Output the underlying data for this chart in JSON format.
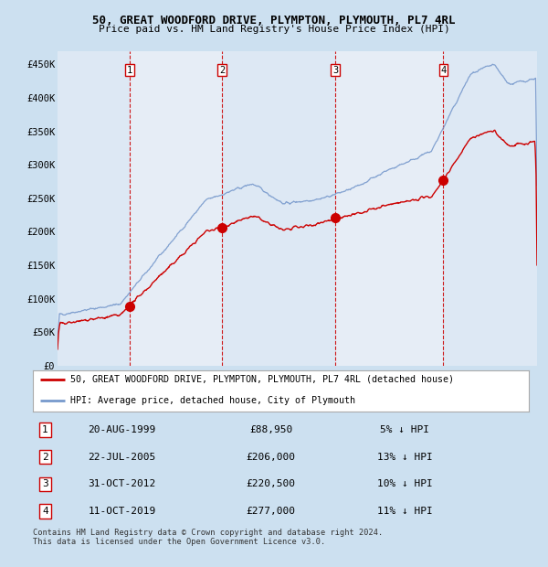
{
  "title": "50, GREAT WOODFORD DRIVE, PLYMPTON, PLYMOUTH, PL7 4RL",
  "subtitle": "Price paid vs. HM Land Registry's House Price Index (HPI)",
  "xlim_start": 1995.0,
  "xlim_end": 2025.8,
  "ylim": [
    0,
    470000
  ],
  "yticks": [
    0,
    50000,
    100000,
    150000,
    200000,
    250000,
    300000,
    350000,
    400000,
    450000
  ],
  "ytick_labels": [
    "£0",
    "£50K",
    "£100K",
    "£150K",
    "£200K",
    "£250K",
    "£300K",
    "£350K",
    "£400K",
    "£450K"
  ],
  "xticks": [
    1995,
    1996,
    1997,
    1998,
    1999,
    2000,
    2001,
    2002,
    2003,
    2004,
    2005,
    2006,
    2007,
    2008,
    2009,
    2010,
    2011,
    2012,
    2013,
    2014,
    2015,
    2016,
    2017,
    2018,
    2019,
    2020,
    2021,
    2022,
    2023,
    2024,
    2025
  ],
  "purchases": [
    {
      "label": "1",
      "date": 1999.635,
      "price": 88950
    },
    {
      "label": "2",
      "date": 2005.553,
      "price": 206000
    },
    {
      "label": "3",
      "date": 2012.832,
      "price": 220500
    },
    {
      "label": "4",
      "date": 2019.776,
      "price": 277000
    }
  ],
  "legend_entries": [
    {
      "label": "50, GREAT WOODFORD DRIVE, PLYMPTON, PLYMOUTH, PL7 4RL (detached house)",
      "color": "#cc0000"
    },
    {
      "label": "HPI: Average price, detached house, City of Plymouth",
      "color": "#7799cc"
    }
  ],
  "table_rows": [
    {
      "num": "1",
      "date": "20-AUG-1999",
      "price": "£88,950",
      "hpi": "5% ↓ HPI"
    },
    {
      "num": "2",
      "date": "22-JUL-2005",
      "price": "£206,000",
      "hpi": "13% ↓ HPI"
    },
    {
      "num": "3",
      "date": "31-OCT-2012",
      "price": "£220,500",
      "hpi": "10% ↓ HPI"
    },
    {
      "num": "4",
      "date": "11-OCT-2019",
      "price": "£277,000",
      "hpi": "11% ↓ HPI"
    }
  ],
  "footer": "Contains HM Land Registry data © Crown copyright and database right 2024.\nThis data is licensed under the Open Government Licence v3.0.",
  "bg_color": "#cce0f0",
  "plot_bg": "#e8f0f8",
  "grid_color": "#ffffff",
  "red_line_color": "#cc0000",
  "blue_line_color": "#7799cc",
  "vline_color": "#cc0000"
}
